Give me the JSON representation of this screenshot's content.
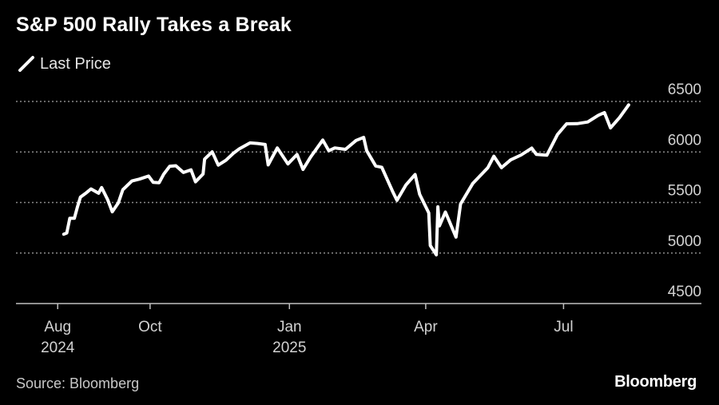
{
  "chart_data": {
    "type": "line",
    "title": "S&P 500 Rally Takes a Break",
    "series": [
      {
        "name": "Last Price",
        "points": [
          [
            "2024-08-05",
            5186
          ],
          [
            "2024-08-07",
            5199
          ],
          [
            "2024-08-09",
            5344
          ],
          [
            "2024-08-12",
            5344
          ],
          [
            "2024-08-14",
            5455
          ],
          [
            "2024-08-16",
            5554
          ],
          [
            "2024-08-20",
            5597
          ],
          [
            "2024-08-23",
            5634
          ],
          [
            "2024-08-28",
            5592
          ],
          [
            "2024-08-30",
            5648
          ],
          [
            "2024-09-03",
            5528
          ],
          [
            "2024-09-06",
            5408
          ],
          [
            "2024-09-10",
            5496
          ],
          [
            "2024-09-13",
            5626
          ],
          [
            "2024-09-19",
            5713
          ],
          [
            "2024-09-24",
            5732
          ],
          [
            "2024-09-30",
            5762
          ],
          [
            "2024-10-03",
            5700
          ],
          [
            "2024-10-07",
            5696
          ],
          [
            "2024-10-10",
            5780
          ],
          [
            "2024-10-14",
            5859
          ],
          [
            "2024-10-18",
            5864
          ],
          [
            "2024-10-23",
            5797
          ],
          [
            "2024-10-28",
            5823
          ],
          [
            "2024-10-31",
            5705
          ],
          [
            "2024-11-05",
            5782
          ],
          [
            "2024-11-06",
            5929
          ],
          [
            "2024-11-11",
            6001
          ],
          [
            "2024-11-15",
            5870
          ],
          [
            "2024-11-20",
            5917
          ],
          [
            "2024-11-25",
            5987
          ],
          [
            "2024-11-29",
            6032
          ],
          [
            "2024-12-06",
            6090
          ],
          [
            "2024-12-11",
            6084
          ],
          [
            "2024-12-16",
            6074
          ],
          [
            "2024-12-18",
            5872
          ],
          [
            "2024-12-24",
            6040
          ],
          [
            "2024-12-31",
            5882
          ],
          [
            "2025-01-06",
            5975
          ],
          [
            "2025-01-10",
            5827
          ],
          [
            "2025-01-15",
            5950
          ],
          [
            "2025-01-23",
            6118
          ],
          [
            "2025-01-27",
            6012
          ],
          [
            "2025-01-31",
            6040
          ],
          [
            "2025-02-07",
            6026
          ],
          [
            "2025-02-14",
            6114
          ],
          [
            "2025-02-19",
            6144
          ],
          [
            "2025-02-21",
            6013
          ],
          [
            "2025-02-27",
            5861
          ],
          [
            "2025-03-03",
            5849
          ],
          [
            "2025-03-10",
            5614
          ],
          [
            "2025-03-13",
            5521
          ],
          [
            "2025-03-19",
            5675
          ],
          [
            "2025-03-25",
            5777
          ],
          [
            "2025-03-28",
            5581
          ],
          [
            "2025-04-03",
            5397
          ],
          [
            "2025-04-04",
            5074
          ],
          [
            "2025-04-08",
            4982
          ],
          [
            "2025-04-09",
            5457
          ],
          [
            "2025-04-10",
            5268
          ],
          [
            "2025-04-14",
            5406
          ],
          [
            "2025-04-21",
            5158
          ],
          [
            "2025-04-24",
            5485
          ],
          [
            "2025-05-02",
            5687
          ],
          [
            "2025-05-12",
            5844
          ],
          [
            "2025-05-16",
            5958
          ],
          [
            "2025-05-21",
            5845
          ],
          [
            "2025-05-27",
            5921
          ],
          [
            "2025-06-03",
            5970
          ],
          [
            "2025-06-10",
            6038
          ],
          [
            "2025-06-13",
            5977
          ],
          [
            "2025-06-20",
            5968
          ],
          [
            "2025-06-27",
            6173
          ],
          [
            "2025-07-03",
            6279
          ],
          [
            "2025-07-10",
            6280
          ],
          [
            "2025-07-17",
            6297
          ],
          [
            "2025-07-24",
            6363
          ],
          [
            "2025-07-28",
            6390
          ],
          [
            "2025-08-01",
            6238
          ],
          [
            "2025-08-07",
            6340
          ],
          [
            "2025-08-12",
            6445
          ],
          [
            "2025-08-13",
            6466
          ]
        ]
      }
    ],
    "y_ticks": [
      "4500",
      "5000",
      "5500",
      "6000",
      "6500"
    ],
    "y_range": [
      4500,
      6500
    ],
    "x_range": [
      "2024-07-15",
      "2025-09-10"
    ],
    "x_ticks": [
      {
        "date": "2024-08-01",
        "label": "Aug",
        "sublabel": "2024"
      },
      {
        "date": "2024-10-01",
        "label": "Oct",
        "sublabel": ""
      },
      {
        "date": "2025-01-01",
        "label": "Jan",
        "sublabel": "2025"
      },
      {
        "date": "2025-04-01",
        "label": "Apr",
        "sublabel": ""
      },
      {
        "date": "2025-07-01",
        "label": "Jul",
        "sublabel": ""
      }
    ],
    "grid": "horizontal-dotted",
    "y_axis_position": "right",
    "legend_position": "top-left",
    "line_color": "#ffffff"
  },
  "source": "Source: Bloomberg",
  "brand": "Bloomberg"
}
